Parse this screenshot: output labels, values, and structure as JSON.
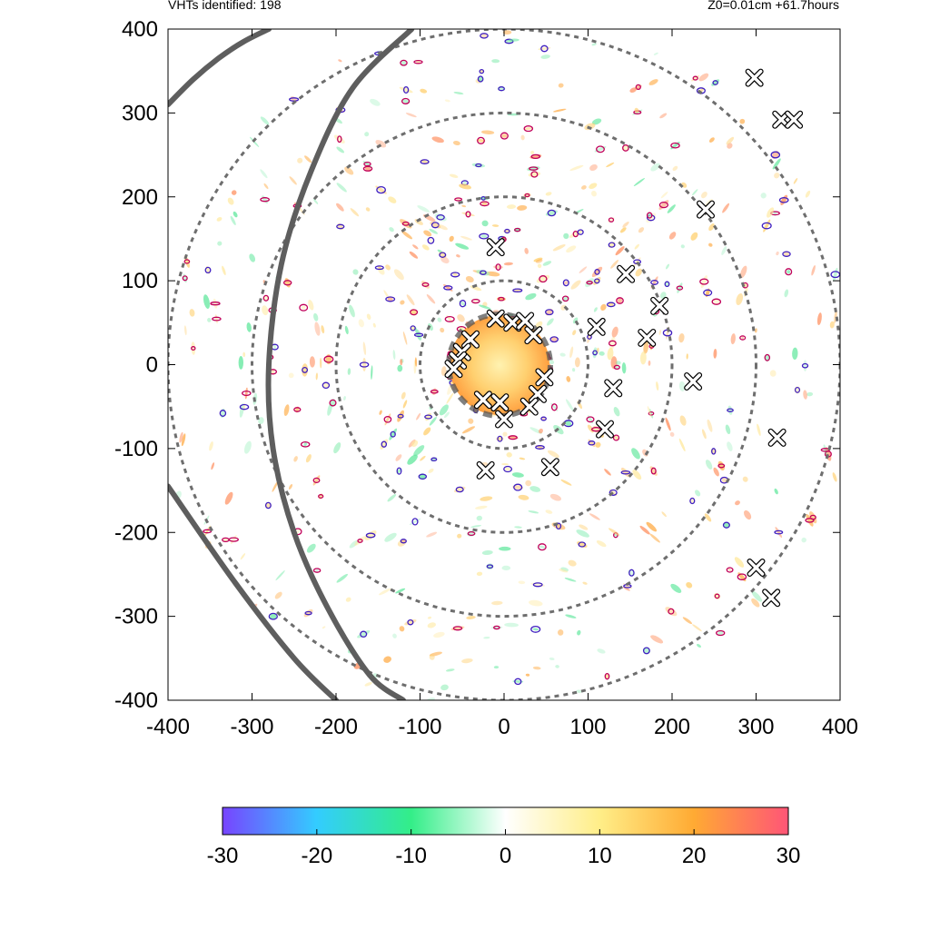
{
  "header": {
    "left_text": "VHTs identified: 198",
    "right_text": "Z0=0.01cm  +61.7hours"
  },
  "chart_data": {
    "type": "scatter",
    "title": "",
    "xlabel": "",
    "ylabel": "",
    "xlim": [
      -400,
      400
    ],
    "ylim": [
      -400,
      400
    ],
    "x_ticks": [
      -400,
      -300,
      -200,
      -100,
      0,
      100,
      200,
      300,
      400
    ],
    "y_ticks": [
      -400,
      -300,
      -200,
      -100,
      0,
      100,
      200,
      300,
      400
    ],
    "grid": false,
    "range_rings_radii": [
      100,
      200,
      300,
      400
    ],
    "vht_count": 198,
    "vht_markers": [
      {
        "x": -10,
        "y": 140
      },
      {
        "x": -10,
        "y": 55
      },
      {
        "x": 10,
        "y": 50
      },
      {
        "x": 25,
        "y": 52
      },
      {
        "x": 35,
        "y": 35
      },
      {
        "x": -40,
        "y": 30
      },
      {
        "x": -50,
        "y": 15
      },
      {
        "x": -55,
        "y": 5
      },
      {
        "x": -60,
        "y": -5
      },
      {
        "x": -25,
        "y": -42
      },
      {
        "x": -5,
        "y": -45
      },
      {
        "x": 0,
        "y": -65
      },
      {
        "x": 40,
        "y": -35
      },
      {
        "x": 48,
        "y": -15
      },
      {
        "x": 30,
        "y": -50
      },
      {
        "x": 110,
        "y": 45
      },
      {
        "x": 145,
        "y": 108
      },
      {
        "x": 185,
        "y": 70
      },
      {
        "x": 170,
        "y": 32
      },
      {
        "x": 130,
        "y": -28
      },
      {
        "x": 120,
        "y": -77
      },
      {
        "x": 55,
        "y": -122
      },
      {
        "x": -22,
        "y": -126
      },
      {
        "x": 225,
        "y": -20
      },
      {
        "x": 240,
        "y": 185
      },
      {
        "x": 298,
        "y": 342
      },
      {
        "x": 330,
        "y": 292
      },
      {
        "x": 345,
        "y": 292
      },
      {
        "x": 325,
        "y": -87
      },
      {
        "x": 300,
        "y": -242
      },
      {
        "x": 318,
        "y": -278
      }
    ],
    "tracks": [
      {
        "x": [
          -400,
          -370,
          -340,
          -310,
          -280
        ],
        "y": [
          310,
          340,
          365,
          385,
          400
        ]
      },
      {
        "x": [
          -110,
          -180,
          -230,
          -265,
          -280,
          -275,
          -250,
          -210,
          -160,
          -120
        ],
        "y": [
          400,
          330,
          230,
          120,
          0,
          -100,
          -200,
          -290,
          -370,
          -400
        ]
      },
      {
        "x": [
          -400,
          -320,
          -250,
          -200
        ],
        "y": [
          -145,
          -260,
          -350,
          -400
        ]
      }
    ],
    "colorbar": {
      "ticks": [
        -30,
        -20,
        -10,
        0,
        10,
        20,
        30
      ],
      "range": [
        -30,
        30
      ],
      "colors": [
        "#7744ff",
        "#33ccff",
        "#33ee88",
        "#ffffff",
        "#ffee88",
        "#ffaa33",
        "#ff5577"
      ]
    }
  }
}
